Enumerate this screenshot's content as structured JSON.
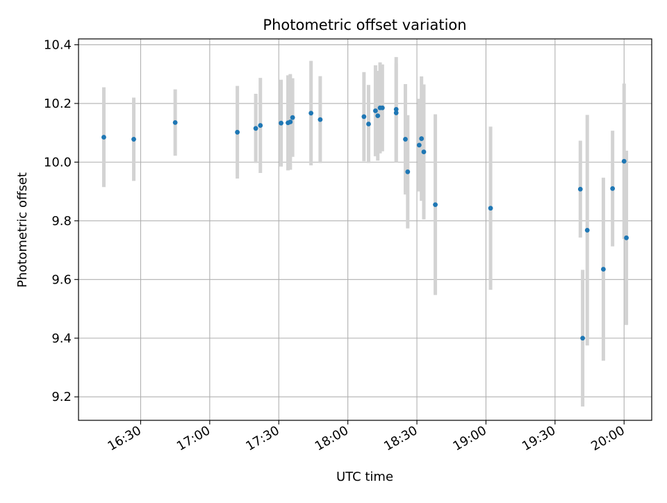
{
  "chart_data": {
    "type": "scatter",
    "title": "Photometric offset variation",
    "xlabel": "UTC time",
    "ylabel": "Photometric offset",
    "x_ticks": [
      "16:30",
      "17:00",
      "17:30",
      "18:00",
      "18:30",
      "19:00",
      "19:30",
      "20:00"
    ],
    "y_ticks": [
      "9.2",
      "9.4",
      "9.6",
      "9.8",
      "10.0",
      "10.2",
      "10.4"
    ],
    "xlim": [
      "16:03",
      "20:12"
    ],
    "ylim": [
      9.12,
      10.42
    ],
    "grid": true,
    "series": [
      {
        "color": "#1f77b4",
        "errorbar_color": "#d3d3d3",
        "points": [
          {
            "x": "16:14",
            "y": 10.085,
            "err": 0.17
          },
          {
            "x": "16:27",
            "y": 10.078,
            "err": 0.142
          },
          {
            "x": "16:45",
            "y": 10.135,
            "err": 0.113
          },
          {
            "x": "17:12",
            "y": 10.102,
            "err": 0.158
          },
          {
            "x": "17:20",
            "y": 10.115,
            "err": 0.118
          },
          {
            "x": "17:22",
            "y": 10.125,
            "err": 0.162
          },
          {
            "x": "17:31",
            "y": 10.133,
            "err": 0.148
          },
          {
            "x": "17:34",
            "y": 10.134,
            "err": 0.162
          },
          {
            "x": "17:35",
            "y": 10.137,
            "err": 0.163
          },
          {
            "x": "17:36",
            "y": 10.152,
            "err": 0.134
          },
          {
            "x": "17:44",
            "y": 10.167,
            "err": 0.178
          },
          {
            "x": "17:48",
            "y": 10.145,
            "err": 0.148
          },
          {
            "x": "18:07",
            "y": 10.155,
            "err": 0.152
          },
          {
            "x": "18:09",
            "y": 10.13,
            "err": 0.133
          },
          {
            "x": "18:12",
            "y": 10.175,
            "err": 0.155
          },
          {
            "x": "18:13",
            "y": 10.158,
            "err": 0.153
          },
          {
            "x": "18:14",
            "y": 10.185,
            "err": 0.155
          },
          {
            "x": "18:15",
            "y": 10.185,
            "err": 0.148
          },
          {
            "x": "18:21",
            "y": 10.168,
            "err": 0.168
          },
          {
            "x": "18:21",
            "y": 10.18,
            "err": 0.178
          },
          {
            "x": "18:25",
            "y": 10.078,
            "err": 0.188
          },
          {
            "x": "18:26",
            "y": 9.967,
            "err": 0.193
          },
          {
            "x": "18:31",
            "y": 10.058,
            "err": 0.158
          },
          {
            "x": "18:32",
            "y": 10.08,
            "err": 0.212
          },
          {
            "x": "18:33",
            "y": 10.035,
            "err": 0.23
          },
          {
            "x": "18:38",
            "y": 9.855,
            "err": 0.308
          },
          {
            "x": "19:02",
            "y": 9.843,
            "err": 0.278
          },
          {
            "x": "19:41",
            "y": 9.908,
            "err": 0.165
          },
          {
            "x": "19:42",
            "y": 9.4,
            "err": 0.233
          },
          {
            "x": "19:44",
            "y": 9.768,
            "err": 0.393
          },
          {
            "x": "19:51",
            "y": 9.635,
            "err": 0.312
          },
          {
            "x": "19:55",
            "y": 9.91,
            "err": 0.197
          },
          {
            "x": "20:00",
            "y": 10.003,
            "err": 0.265
          },
          {
            "x": "20:01",
            "y": 9.742,
            "err": 0.297
          }
        ]
      }
    ]
  }
}
